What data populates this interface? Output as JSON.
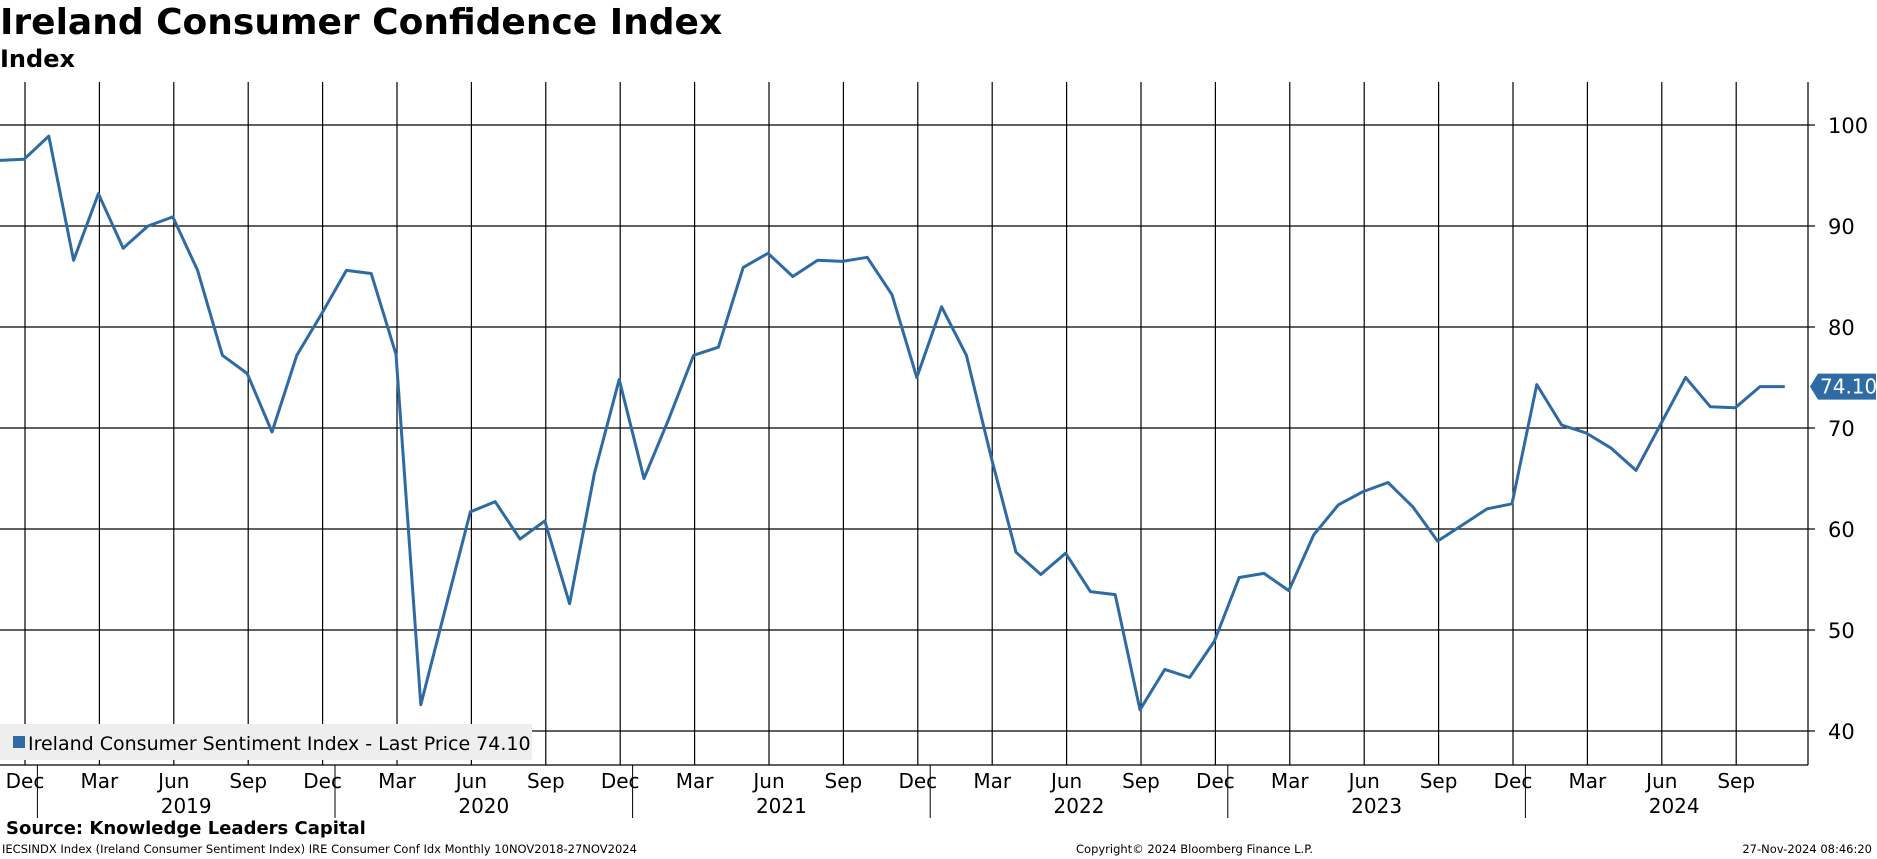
{
  "header": {
    "title": "Ireland Consumer Confidence Index",
    "subtitle": "Index"
  },
  "footer": {
    "source": "Source: Knowledge Leaders Capital",
    "description": "IECSINDX Index (Ireland Consumer Sentiment Index) IRE Consumer Conf Idx  Monthly 10NOV2018-27NOV2024",
    "copyright": "Copyright© 2024 Bloomberg Finance L.P.",
    "timestamp": "27-Nov-2024 08:46:20"
  },
  "colors": {
    "line": "#2e6aa3",
    "grid": "#000000",
    "legend_bg": "#eeeeee",
    "last_price_bg": "#2e6aa3"
  },
  "chart_data": {
    "type": "line",
    "title": "Ireland Consumer Confidence Index",
    "ylabel": "Index",
    "ylim": [
      38.5,
      104.5
    ],
    "yticks": [
      40,
      50,
      60,
      70,
      80,
      90,
      100
    ],
    "grid": true,
    "y_axis_side": "right",
    "legend_placement": "bottom-left",
    "legend_label": "Ireland Consumer Sentiment Index - Last Price 74.10",
    "last_price_label": "74.10",
    "month_ticks": [
      {
        "label": "Dec",
        "date": "2018-12"
      },
      {
        "label": "Mar",
        "date": "2019-03"
      },
      {
        "label": "Jun",
        "date": "2019-06"
      },
      {
        "label": "Sep",
        "date": "2019-09"
      },
      {
        "label": "Dec",
        "date": "2019-12"
      },
      {
        "label": "Mar",
        "date": "2020-03"
      },
      {
        "label": "Jun",
        "date": "2020-06"
      },
      {
        "label": "Sep",
        "date": "2020-09"
      },
      {
        "label": "Dec",
        "date": "2020-12"
      },
      {
        "label": "Mar",
        "date": "2021-03"
      },
      {
        "label": "Jun",
        "date": "2021-06"
      },
      {
        "label": "Sep",
        "date": "2021-09"
      },
      {
        "label": "Dec",
        "date": "2021-12"
      },
      {
        "label": "Mar",
        "date": "2022-03"
      },
      {
        "label": "Jun",
        "date": "2022-06"
      },
      {
        "label": "Sep",
        "date": "2022-09"
      },
      {
        "label": "Dec",
        "date": "2022-12"
      },
      {
        "label": "Mar",
        "date": "2023-03"
      },
      {
        "label": "Jun",
        "date": "2023-06"
      },
      {
        "label": "Sep",
        "date": "2023-09"
      },
      {
        "label": "Dec",
        "date": "2023-12"
      },
      {
        "label": "Mar",
        "date": "2024-03"
      },
      {
        "label": "Jun",
        "date": "2024-06"
      },
      {
        "label": "Sep",
        "date": "2024-09"
      }
    ],
    "year_labels": [
      {
        "label": "2019",
        "from": "2019-01",
        "to": "2019-12"
      },
      {
        "label": "2020",
        "from": "2020-01",
        "to": "2020-12"
      },
      {
        "label": "2021",
        "from": "2021-01",
        "to": "2021-12"
      },
      {
        "label": "2022",
        "from": "2022-01",
        "to": "2022-12"
      },
      {
        "label": "2023",
        "from": "2023-01",
        "to": "2023-12"
      },
      {
        "label": "2024",
        "from": "2024-01",
        "to": "2024-12"
      }
    ],
    "x_range": [
      "2018-11",
      "2024-12"
    ],
    "series": [
      {
        "name": "Ireland Consumer Sentiment Index",
        "x": [
          "2018-11",
          "2018-12",
          "2019-01",
          "2019-02",
          "2019-03",
          "2019-04",
          "2019-05",
          "2019-06",
          "2019-07",
          "2019-08",
          "2019-09",
          "2019-10",
          "2019-11",
          "2019-12",
          "2020-01",
          "2020-02",
          "2020-03",
          "2020-04",
          "2020-05",
          "2020-06",
          "2020-07",
          "2020-08",
          "2020-09",
          "2020-10",
          "2020-11",
          "2020-12",
          "2021-01",
          "2021-02",
          "2021-03",
          "2021-04",
          "2021-05",
          "2021-06",
          "2021-07",
          "2021-08",
          "2021-09",
          "2021-10",
          "2021-11",
          "2021-12",
          "2022-01",
          "2022-02",
          "2022-03",
          "2022-04",
          "2022-05",
          "2022-06",
          "2022-07",
          "2022-08",
          "2022-09",
          "2022-10",
          "2022-11",
          "2022-12",
          "2023-01",
          "2023-02",
          "2023-03",
          "2023-04",
          "2023-05",
          "2023-06",
          "2023-07",
          "2023-08",
          "2023-09",
          "2023-10",
          "2023-11",
          "2023-12",
          "2024-01",
          "2024-02",
          "2024-03",
          "2024-04",
          "2024-05",
          "2024-06",
          "2024-07",
          "2024-08",
          "2024-09",
          "2024-10",
          "2024-11"
        ],
        "values": [
          96.5,
          96.6,
          98.9,
          86.6,
          93.2,
          87.8,
          90.0,
          90.9,
          85.6,
          77.2,
          75.4,
          69.6,
          77.2,
          81.3,
          85.6,
          85.3,
          77.3,
          42.6,
          52.2,
          61.7,
          62.7,
          59.0,
          60.8,
          52.6,
          65.5,
          74.8,
          65.0,
          70.9,
          77.2,
          78.0,
          85.9,
          87.3,
          85.0,
          86.6,
          86.5,
          86.9,
          83.2,
          75.0,
          82.0,
          77.2,
          67.1,
          57.7,
          55.5,
          57.6,
          53.8,
          53.5,
          42.1,
          46.1,
          45.3,
          48.9,
          55.2,
          55.6,
          53.9,
          59.4,
          62.4,
          63.7,
          64.6,
          62.2,
          58.8,
          60.4,
          62.0,
          62.5,
          74.3,
          70.3,
          69.5,
          68.0,
          65.8,
          70.4,
          75.0,
          72.1,
          72.0,
          74.1,
          74.1
        ]
      }
    ]
  }
}
